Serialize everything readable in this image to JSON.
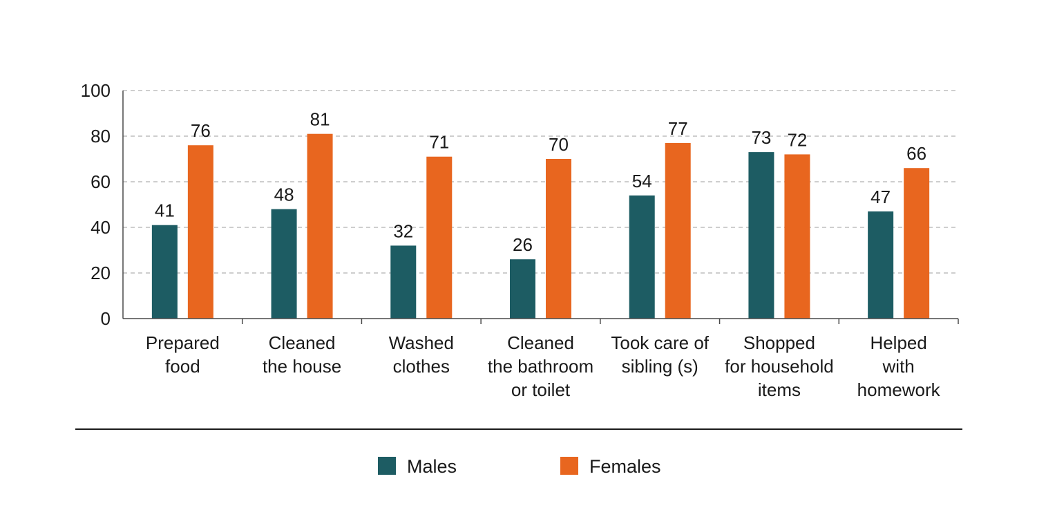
{
  "chart_data": {
    "type": "bar",
    "title": "",
    "xlabel": "",
    "ylabel": "",
    "ylim": [
      0,
      100
    ],
    "yticks": [
      0,
      20,
      40,
      60,
      80,
      100
    ],
    "grid": true,
    "legend_position": "bottom",
    "categories": [
      [
        "Prepared",
        "food"
      ],
      [
        "Cleaned",
        "the house"
      ],
      [
        "Washed",
        "clothes"
      ],
      [
        "Cleaned",
        "the bathroom",
        "or toilet"
      ],
      [
        "Took care of",
        "sibling (s)"
      ],
      [
        "Shopped",
        "for household",
        "items"
      ],
      [
        "Helped",
        "with",
        "homework"
      ]
    ],
    "series": [
      {
        "name": "Males",
        "color": "#1d5c63",
        "values": [
          41,
          48,
          32,
          26,
          54,
          73,
          47
        ]
      },
      {
        "name": "Females",
        "color": "#e8661f",
        "values": [
          76,
          81,
          71,
          70,
          77,
          72,
          66
        ]
      }
    ]
  }
}
